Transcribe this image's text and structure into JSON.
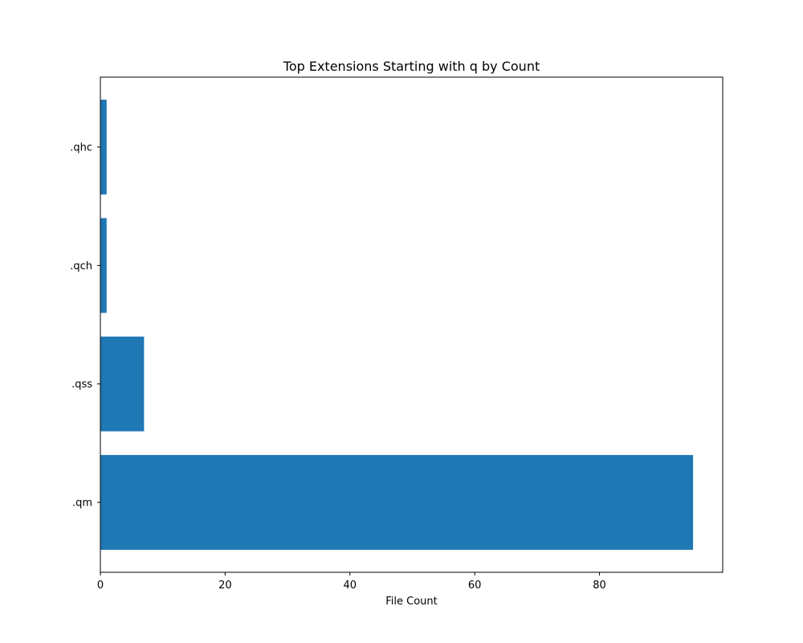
{
  "chart_data": {
    "type": "bar",
    "orientation": "horizontal",
    "title": "Top Extensions Starting with q by Count",
    "xlabel": "File Count",
    "ylabel": "",
    "categories": [
      ".qm",
      ".qss",
      ".qch",
      ".qhc"
    ],
    "values": [
      95,
      7,
      1,
      1
    ],
    "xlim": [
      0,
      99.75
    ],
    "xticks": [
      0,
      20,
      40,
      60,
      80
    ],
    "grid": false,
    "legend": "none",
    "bar_color": "#1f77b4"
  }
}
